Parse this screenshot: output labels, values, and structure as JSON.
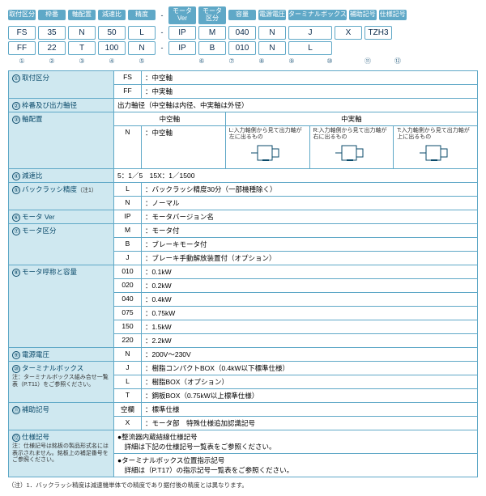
{
  "colors": {
    "brand": "#5fa8c7",
    "brand_light": "#cfe8f0",
    "text_head": "#ffffff",
    "text_body": "#0a2a4a"
  },
  "header": {
    "labels_top": [
      "取付区分",
      "枠番",
      "軸配置",
      "減速比",
      "精度"
    ],
    "labels_bottom": [
      "モータ\nVer",
      "モータ\n区分",
      "容量",
      "電源電圧",
      "ターミナルボックス",
      "補助記号",
      "仕様記号"
    ],
    "row1": [
      "FS",
      "35",
      "N",
      "50",
      "L",
      "-",
      "IP",
      "M",
      "040",
      "N",
      "J",
      "X",
      "TZH3"
    ],
    "row2": [
      "FF",
      "22",
      "T",
      "100",
      "N",
      "-",
      "IP",
      "B",
      "010",
      "N",
      "L",
      "",
      ""
    ],
    "nums": [
      "①",
      "②",
      "③",
      "④",
      "⑤",
      "",
      "⑥",
      "⑦",
      "⑧",
      "⑨",
      "⑩",
      "⑪",
      "⑫"
    ]
  },
  "spec": [
    {
      "no": "①",
      "label": "取付区分",
      "rows": [
        [
          "FS",
          "：中空軸"
        ],
        [
          "FF",
          "：中実軸"
        ]
      ]
    },
    {
      "no": "②",
      "label": "枠番及び出力軸径",
      "rows": [
        [
          "",
          "出力軸径（中空軸は内径、中実軸は外径）"
        ]
      ]
    },
    {
      "no": "③",
      "label": "軸配置",
      "sub": {
        "head": [
          "中空軸",
          "中実軸"
        ],
        "left": [
          "N",
          "：中空軸"
        ],
        "diagrams": [
          "L:入力軸側から見て出力軸が左に出るもの",
          "R:入力軸側から見て出力軸が右に出るもの",
          "T:入力軸側から見て出力軸が上に出るもの"
        ]
      }
    },
    {
      "no": "④",
      "label": "減速比",
      "rows": [
        [
          "",
          "5：1／5　15X：1／1500"
        ]
      ]
    },
    {
      "no": "⑤",
      "label": "バックラッシ精度",
      "note": "（注1）",
      "rows": [
        [
          "L",
          "：バックラッシ精度30分（一部機種除く）"
        ],
        [
          "N",
          "：ノーマル"
        ]
      ]
    },
    {
      "no": "⑥",
      "label": "モータ Ver",
      "rows": [
        [
          "IP",
          "：モータバージョン名"
        ]
      ]
    },
    {
      "no": "⑦",
      "label": "モータ区分",
      "rows": [
        [
          "M",
          "：モータ付"
        ],
        [
          "B",
          "：ブレーキモータ付"
        ],
        [
          "J",
          "：ブレーキ手動解放装置付（オプション）"
        ]
      ]
    },
    {
      "no": "⑧",
      "label": "モータ呼称と容量",
      "rows": [
        [
          "010",
          "：0.1kW"
        ],
        [
          "020",
          "：0.2kW"
        ],
        [
          "040",
          "：0.4kW"
        ],
        [
          "075",
          "：0.75kW"
        ],
        [
          "150",
          "：1.5kW"
        ],
        [
          "220",
          "：2.2kW"
        ]
      ]
    },
    {
      "no": "⑨",
      "label": "電源電圧",
      "rows": [
        [
          "N",
          "：200V〜230V"
        ]
      ]
    },
    {
      "no": "⑩",
      "label": "ターミナルボックス",
      "note2": "注：ターミナルボックス組み合せ一覧表（P.T11）をご参照ください。",
      "rows": [
        [
          "J",
          "：樹脂コンパクトBOX（0.4kW以下標準仕様）"
        ],
        [
          "L",
          "：樹脂BOX（オプション）"
        ],
        [
          "T",
          "：鋼板BOX（0.75kW以上標準仕様）"
        ]
      ]
    },
    {
      "no": "⑪",
      "label": "補助記号",
      "rows": [
        [
          "空欄",
          "：標準仕様"
        ],
        [
          "X",
          "：モータ部　特殊仕様追加認識記号"
        ]
      ]
    },
    {
      "no": "⑫",
      "label": "仕様記号",
      "note2": "注：仕様記号は銘板の製品形式名には表示されません。銘板上の補足番号をご参照ください。",
      "rows": [
        [
          "",
          "●整流器内蔵結線仕様記号\n　詳細は下記の仕様記号一覧表をご参照ください。"
        ],
        [
          "",
          "●ターミナルボックス位置指示記号\n　詳細は（P.T17）の指示記号一覧表をご参照ください。"
        ]
      ]
    }
  ],
  "footnote": "（注）1．バックラッシ精度は減速機単体での精度であり据付後の精度とは異なります。"
}
